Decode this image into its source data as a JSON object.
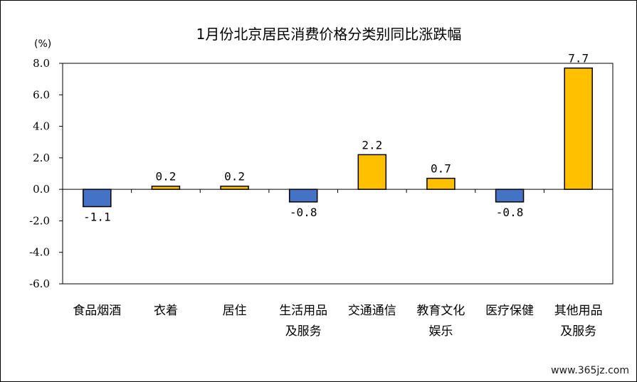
{
  "chart_data": {
    "type": "bar",
    "title": "1月份北京居民消费价格分类别同比涨跌幅",
    "unit_label": "(%)",
    "categories": [
      [
        "食品烟酒"
      ],
      [
        "衣着"
      ],
      [
        "居住"
      ],
      [
        "生活用品",
        "及服务"
      ],
      [
        "交通通信"
      ],
      [
        "教育文化",
        "娱乐"
      ],
      [
        "医疗保健"
      ],
      [
        "其他用品",
        "及服务"
      ]
    ],
    "values": [
      -1.1,
      0.2,
      0.2,
      -0.8,
      2.2,
      0.7,
      -0.8,
      7.7
    ],
    "value_labels": [
      "-1.1",
      "0.2",
      "0.2",
      "-0.8",
      "2.2",
      "0.7",
      "-0.8",
      "7.7"
    ],
    "ylim": [
      -6.0,
      8.0
    ],
    "yticks": [
      "8.0",
      "6.0",
      "4.0",
      "2.0",
      "0.0",
      "-2.0",
      "-4.0",
      "-6.0"
    ],
    "ytick_values": [
      8,
      6,
      4,
      2,
      0,
      -2,
      -4,
      -6
    ],
    "grid": false,
    "colors": {
      "positive": "#FFC000",
      "negative": "#4472C4",
      "outline": "#000000"
    }
  },
  "watermark": "www.365jz.com"
}
